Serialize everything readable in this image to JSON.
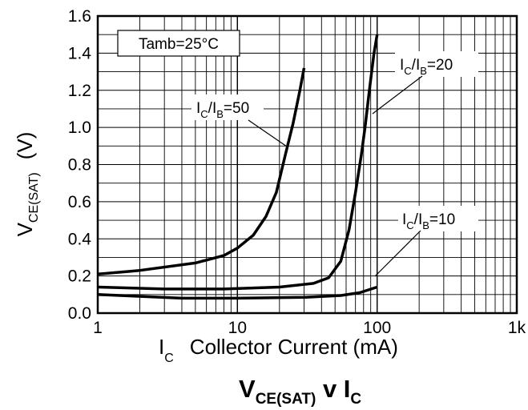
{
  "chart_data": {
    "type": "line",
    "title": {
      "main": "V",
      "sub": "CE(SAT)",
      "mid": " v ",
      "main2": "I",
      "sub2": "C"
    },
    "xlabel": {
      "main": "I",
      "sub": "C",
      "rest": "Collector Current (mA)"
    },
    "ylabel": {
      "main": "V",
      "sub": "CE(SAT)",
      "rest": "(V)"
    },
    "x_scale": "log",
    "xlim": [
      1,
      1000
    ],
    "ylim": [
      0,
      1.6
    ],
    "x_ticks": [
      {
        "value": 1,
        "label": "1"
      },
      {
        "value": 10,
        "label": "10"
      },
      {
        "value": 100,
        "label": "100"
      },
      {
        "value": 1000,
        "label": "1k"
      }
    ],
    "y_ticks": [
      {
        "value": 0,
        "label": "0.0"
      },
      {
        "value": 0.2,
        "label": "0.2"
      },
      {
        "value": 0.4,
        "label": "0.4"
      },
      {
        "value": 0.6,
        "label": "0.6"
      },
      {
        "value": 0.8,
        "label": "0.8"
      },
      {
        "value": 1.0,
        "label": "1.0"
      },
      {
        "value": 1.2,
        "label": "1.2"
      },
      {
        "value": 1.4,
        "label": "1.4"
      },
      {
        "value": 1.6,
        "label": "1.6"
      }
    ],
    "grid": true,
    "series": [
      {
        "name": "IC/IB=50",
        "color": "#000000",
        "points": [
          [
            1,
            0.21
          ],
          [
            2,
            0.23
          ],
          [
            5,
            0.27
          ],
          [
            8,
            0.31
          ],
          [
            10,
            0.35
          ],
          [
            13,
            0.42
          ],
          [
            16,
            0.52
          ],
          [
            19,
            0.65
          ],
          [
            22,
            0.85
          ],
          [
            25,
            1.02
          ],
          [
            28,
            1.2
          ],
          [
            30,
            1.32
          ]
        ]
      },
      {
        "name": "IC/IB=20",
        "color": "#000000",
        "points": [
          [
            1,
            0.14
          ],
          [
            3,
            0.13
          ],
          [
            8,
            0.13
          ],
          [
            20,
            0.14
          ],
          [
            35,
            0.16
          ],
          [
            45,
            0.19
          ],
          [
            55,
            0.28
          ],
          [
            63,
            0.45
          ],
          [
            70,
            0.65
          ],
          [
            77,
            0.85
          ],
          [
            82,
            1.0
          ],
          [
            88,
            1.2
          ],
          [
            95,
            1.4
          ],
          [
            100,
            1.5
          ]
        ]
      },
      {
        "name": "IC/IB=10",
        "color": "#000000",
        "points": [
          [
            1,
            0.1
          ],
          [
            4,
            0.08
          ],
          [
            10,
            0.08
          ],
          [
            30,
            0.085
          ],
          [
            55,
            0.095
          ],
          [
            75,
            0.11
          ],
          [
            100,
            0.14
          ]
        ]
      }
    ],
    "annotations": [
      {
        "type": "box",
        "text": "Tamb=25°C"
      },
      {
        "type": "label",
        "series": "IC/IB=50",
        "main1": "I",
        "sub1": "C",
        "main2": "/I",
        "sub2": "B",
        "rest": "=50"
      },
      {
        "type": "label",
        "series": "IC/IB=20",
        "main1": "I",
        "sub1": "C",
        "main2": "/I",
        "sub2": "B",
        "rest": "=20"
      },
      {
        "type": "label",
        "series": "IC/IB=10",
        "main1": "I",
        "sub1": "C",
        "main2": "/I",
        "sub2": "B",
        "rest": "=10"
      }
    ]
  }
}
